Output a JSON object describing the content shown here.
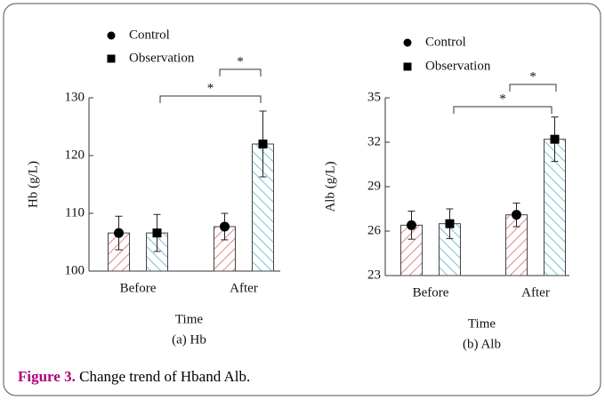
{
  "chart_data": [
    {
      "type": "bar",
      "caption": "(a) Hb",
      "ylabel": "Hb (g/L)",
      "xlabel": "Time",
      "categories": [
        "Before",
        "After"
      ],
      "series": [
        {
          "name": "Control",
          "color": "#e06666",
          "values": [
            106.6,
            107.7
          ],
          "errors": [
            2.9,
            2.3
          ]
        },
        {
          "name": "Observation",
          "color": "#4fb3c8",
          "values": [
            106.6,
            122
          ],
          "errors": [
            3.2,
            5.7
          ]
        }
      ],
      "ylim": [
        100,
        130
      ],
      "yticks": [
        100,
        110,
        120,
        130
      ],
      "annotations": [
        "*",
        "*"
      ]
    },
    {
      "type": "bar",
      "caption": "(b) Alb",
      "ylabel": "Alb (g/L)",
      "xlabel": "Time",
      "categories": [
        "Before",
        "After"
      ],
      "series": [
        {
          "name": "Control",
          "color": "#e06666",
          "values": [
            26.4,
            27.1
          ],
          "errors": [
            0.95,
            0.8
          ]
        },
        {
          "name": "Observation",
          "color": "#4fb3c8",
          "values": [
            26.5,
            32.2
          ],
          "errors": [
            1,
            1.5
          ]
        }
      ],
      "ylim": [
        23,
        35
      ],
      "yticks": [
        23,
        26,
        29,
        32,
        35
      ],
      "annotations": [
        "*",
        "*"
      ]
    }
  ],
  "figure_caption": {
    "label": "Figure 3.",
    "text": "Change trend of Hband Alb."
  }
}
